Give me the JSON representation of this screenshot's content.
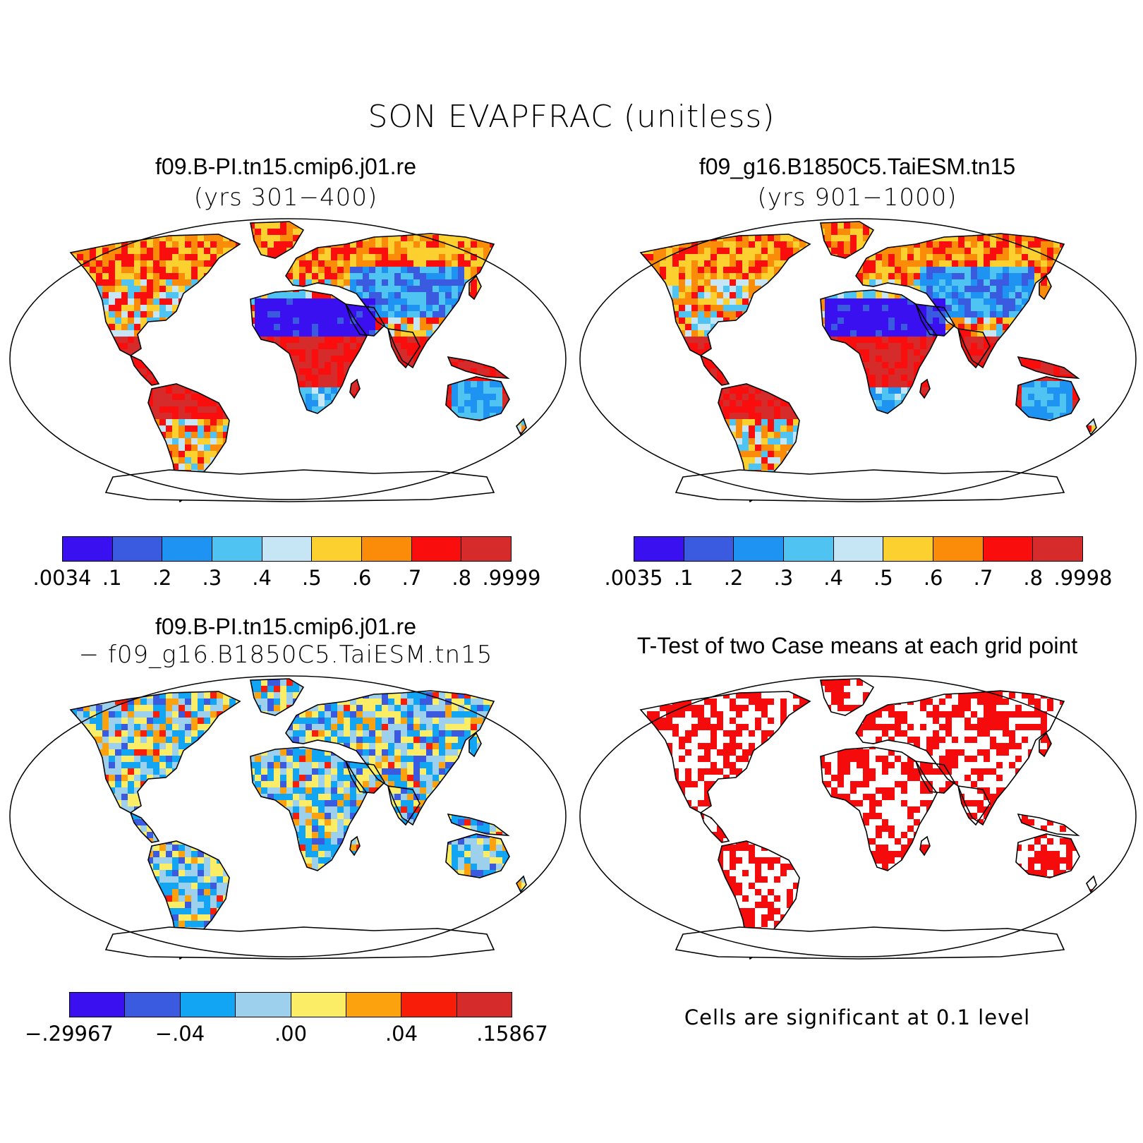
{
  "title": "SON EVAPFRAC (unitless)",
  "panels": [
    {
      "id": "case1",
      "title": "f09.B-PI.tn15.cmip6.j01.re",
      "subtitle": "(yrs 301−400)",
      "type": "field"
    },
    {
      "id": "case2",
      "title": "f09_g16.B1850C5.TaiESM.tn15",
      "subtitle": "(yrs 901−1000)",
      "type": "field"
    },
    {
      "id": "diff",
      "title": "f09.B-PI.tn15.cmip6.j01.re",
      "subtitle": "− f09_g16.B1850C5.TaiESM.tn15",
      "type": "difference"
    },
    {
      "id": "ttest",
      "title": "T-Test of two Case means at each grid point",
      "note": "Cells are significant at 0.1 level",
      "type": "significance"
    }
  ],
  "colorbars": {
    "case1": {
      "colors": [
        "#3a10f0",
        "#3a5be0",
        "#1f93f2",
        "#4fc4f3",
        "#c6e6f6",
        "#fcd02f",
        "#fa8c0a",
        "#f90d0d",
        "#d62b2b"
      ],
      "labels": [
        ".0034",
        ".1",
        ".2",
        ".3",
        ".4",
        ".5",
        ".6",
        ".7",
        ".8",
        ".9999"
      ]
    },
    "case2": {
      "colors": [
        "#3a10f0",
        "#3a5be0",
        "#1f93f2",
        "#4fc4f3",
        "#c6e6f6",
        "#fcd02f",
        "#fa8c0a",
        "#f90d0d",
        "#d62b2b"
      ],
      "labels": [
        ".0035",
        ".1",
        ".2",
        ".3",
        ".4",
        ".5",
        ".6",
        ".7",
        ".8",
        ".9998"
      ]
    },
    "diff": {
      "colors": [
        "#3a10f0",
        "#3a5be0",
        "#11a5f3",
        "#9dd0ec",
        "#fbee66",
        "#fba20e",
        "#f71d08",
        "#d62b2b"
      ],
      "labels": [
        "−.29967",
        "−.04",
        ".00",
        ".04",
        ".15867"
      ],
      "label_boundaries": [
        0,
        2,
        4,
        6,
        8
      ]
    }
  },
  "significance_color": "#f50b0b",
  "projection": "Robinson"
}
